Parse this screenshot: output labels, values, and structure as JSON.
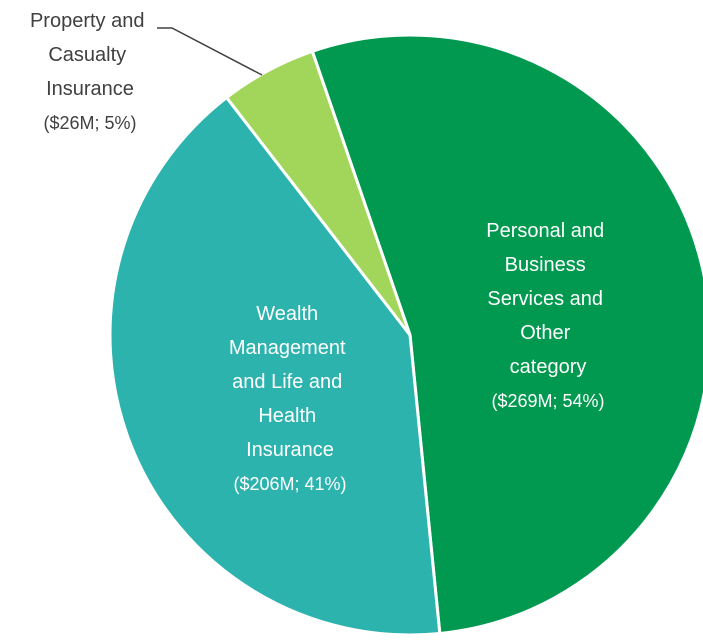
{
  "chart_data": {
    "type": "pie",
    "categories": [
      "Personal and Business Services and Other category",
      "Wealth Management and Life and Health Insurance",
      "Property and Casualty Insurance"
    ],
    "values": [
      269,
      206,
      26
    ],
    "value_labels": [
      "($269M; 54%)",
      "($206M; 41%)",
      "($26M; 5%)"
    ],
    "colors": [
      "#00994f",
      "#2db3ae",
      "#a2d65a"
    ]
  }
}
